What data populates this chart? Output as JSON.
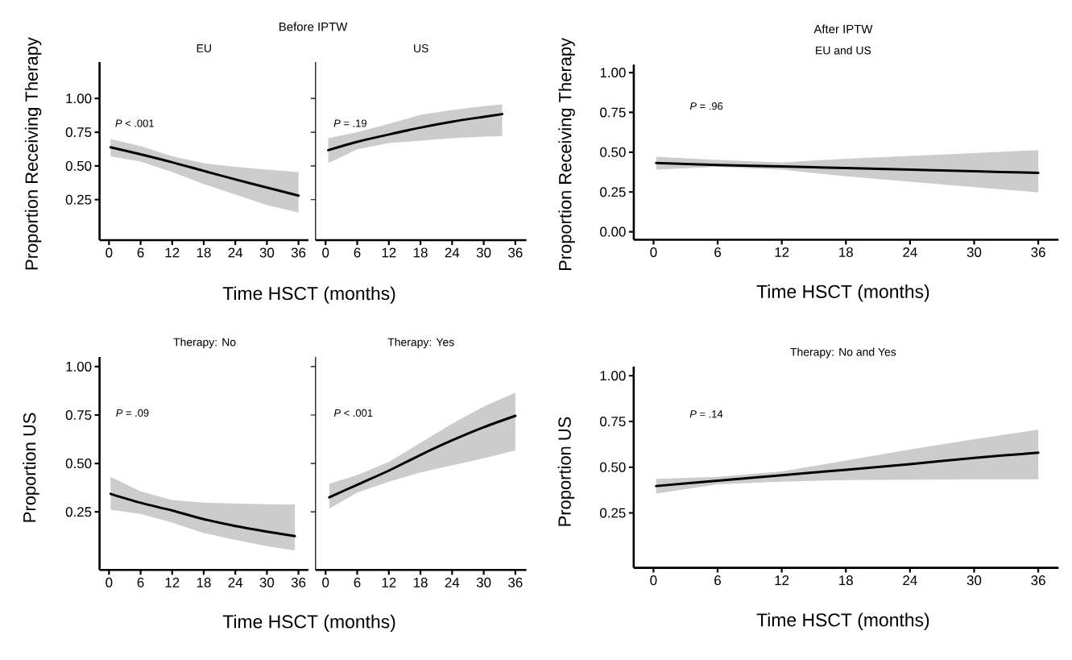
{
  "chart_data": [
    {
      "type": "line",
      "title": "Before IPTW",
      "subtitle": "EU",
      "xlabel": "Time HSCT (months)",
      "ylabel": "Proportion Receiving Therapy",
      "annotations": [
        "*P* < .001"
      ],
      "xlim": [
        -1.8,
        37.9
      ],
      "ylim": [
        -0.05,
        1.27
      ],
      "xticks": [
        0,
        6,
        12,
        18,
        24,
        30,
        36
      ],
      "yticks": [
        {
          "value": 0.25,
          "label": "0.25"
        },
        {
          "value": 0.5,
          "label": "0.50"
        },
        {
          "value": 0.75,
          "label": "0.75"
        },
        {
          "value": 1,
          "label": "1.00"
        }
      ],
      "series": [
        {
          "color": "#000000",
          "x": [
            0.3,
            6,
            12,
            18,
            24,
            30,
            36
          ],
          "values": [
            0.638,
            0.586,
            0.527,
            0.463,
            0.4,
            0.34,
            0.28
          ],
          "lower": [
            0.571,
            0.532,
            0.455,
            0.365,
            0.288,
            0.21,
            0.155
          ],
          "upper": [
            0.7,
            0.648,
            0.571,
            0.52,
            0.494,
            0.473,
            0.455
          ]
        }
      ]
    },
    {
      "type": "line",
      "subtitle": "US",
      "annotations": [
        "*P* = .19"
      ],
      "xlim": [
        -1.9,
        38.1
      ],
      "ylim": [
        -0.05,
        1.27
      ],
      "yticks": [
        {
          "value": 0.25,
          "label": null
        },
        {
          "value": 0.5,
          "label": null
        },
        {
          "value": 0.75,
          "label": null
        },
        {
          "value": 1,
          "label": null
        }
      ],
      "xticks": [
        0,
        6,
        12,
        18,
        24,
        30,
        36
      ],
      "tick_labels": "x",
      "series": [
        {
          "color": "#000000",
          "x": [
            0.5,
            6,
            12,
            18,
            24,
            30,
            33.5
          ],
          "values": [
            0.617,
            0.679,
            0.733,
            0.784,
            0.828,
            0.864,
            0.884
          ],
          "lower": [
            0.52,
            0.623,
            0.669,
            0.687,
            0.705,
            0.717,
            0.72
          ],
          "upper": [
            0.705,
            0.751,
            0.812,
            0.879,
            0.915,
            0.943,
            0.956
          ]
        }
      ]
    },
    {
      "type": "line",
      "title": "After IPTW",
      "subtitle": "EU and US",
      "xlabel": "Time HSCT (months)",
      "ylabel": "Proportion Receiving Therapy",
      "annotations": [
        "*P* = .96"
      ],
      "xlim": [
        -1.85,
        37.9
      ],
      "ylim": [
        -0.05,
        1.05
      ],
      "xticks": [
        0,
        6,
        12,
        18,
        24,
        30,
        36
      ],
      "yticks": [
        {
          "value": 0,
          "label": "0.00"
        },
        {
          "value": 0.25,
          "label": "0.25"
        },
        {
          "value": 0.5,
          "label": "0.50"
        },
        {
          "value": 0.75,
          "label": "0.75"
        },
        {
          "value": 1,
          "label": "1.00"
        }
      ],
      "series": [
        {
          "color": "#000000",
          "x": [
            0.25,
            6,
            12,
            18,
            24,
            30,
            36
          ],
          "values": [
            0.432,
            0.42,
            0.41,
            0.4,
            0.39,
            0.38,
            0.37
          ],
          "lower": [
            0.391,
            0.408,
            0.39,
            0.348,
            0.314,
            0.28,
            0.248
          ],
          "upper": [
            0.472,
            0.451,
            0.435,
            0.459,
            0.476,
            0.494,
            0.513
          ]
        }
      ]
    },
    {
      "type": "line",
      "subtitle": "Therapy: No",
      "xlabel": "Time HSCT (months)",
      "ylabel": "Proportion US",
      "annotations": [
        "*P* = .09"
      ],
      "xlim": [
        -1.8,
        37.9
      ],
      "ylim": [
        -0.05,
        1.05
      ],
      "xticks": [
        0,
        6,
        12,
        18,
        24,
        30,
        36
      ],
      "yticks": [
        {
          "value": 0.25,
          "label": "0.25"
        },
        {
          "value": 0.5,
          "label": "0.50"
        },
        {
          "value": 0.75,
          "label": "0.75"
        },
        {
          "value": 1,
          "label": "1.00"
        }
      ],
      "series": [
        {
          "color": "#000000",
          "x": [
            0.3,
            6,
            12,
            18,
            24,
            30,
            35.3
          ],
          "values": [
            0.343,
            0.297,
            0.257,
            0.212,
            0.177,
            0.148,
            0.125
          ],
          "lower": [
            0.261,
            0.239,
            0.195,
            0.141,
            0.105,
            0.073,
            0.051
          ],
          "upper": [
            0.431,
            0.356,
            0.311,
            0.298,
            0.293,
            0.289,
            0.288
          ]
        }
      ]
    },
    {
      "type": "line",
      "subtitle": "Therapy: Yes",
      "annotations": [
        "*P* < .001"
      ],
      "xlim": [
        -1.9,
        38.1
      ],
      "ylim": [
        -0.05,
        1.05
      ],
      "yticks": [
        {
          "value": 0.25,
          "label": null
        },
        {
          "value": 0.5,
          "label": null
        },
        {
          "value": 0.75,
          "label": null
        },
        {
          "value": 1,
          "label": null
        }
      ],
      "xticks": [
        0,
        6,
        12,
        18,
        24,
        30,
        36
      ],
      "tick_labels": "x",
      "series": [
        {
          "color": "#000000",
          "x": [
            0.7,
            6,
            12,
            18,
            24,
            30,
            36
          ],
          "values": [
            0.325,
            0.39,
            0.463,
            0.544,
            0.619,
            0.687,
            0.746
          ],
          "lower": [
            0.266,
            0.35,
            0.406,
            0.454,
            0.49,
            0.526,
            0.567
          ],
          "upper": [
            0.395,
            0.44,
            0.508,
            0.606,
            0.705,
            0.794,
            0.866
          ]
        }
      ]
    },
    {
      "type": "line",
      "subtitle": "Therapy: No and Yes",
      "xlabel": "Time HSCT (months)",
      "ylabel": "Proportion US",
      "annotations": [
        "*P* = .14"
      ],
      "xlim": [
        -1.85,
        37.9
      ],
      "ylim": [
        -0.05,
        1.05
      ],
      "xticks": [
        0,
        6,
        12,
        18,
        24,
        30,
        36
      ],
      "yticks": [
        {
          "value": 0.25,
          "label": "0.25"
        },
        {
          "value": 0.5,
          "label": "0.50"
        },
        {
          "value": 0.75,
          "label": "0.75"
        },
        {
          "value": 1,
          "label": "1.00"
        }
      ],
      "series": [
        {
          "color": "#000000",
          "x": [
            0.25,
            6,
            12,
            18,
            24,
            30,
            36
          ],
          "values": [
            0.397,
            0.426,
            0.456,
            0.486,
            0.517,
            0.551,
            0.579
          ],
          "lower": [
            0.356,
            0.406,
            0.421,
            0.43,
            0.432,
            0.434,
            0.434
          ],
          "upper": [
            0.436,
            0.447,
            0.477,
            0.536,
            0.597,
            0.653,
            0.705
          ]
        }
      ]
    }
  ]
}
